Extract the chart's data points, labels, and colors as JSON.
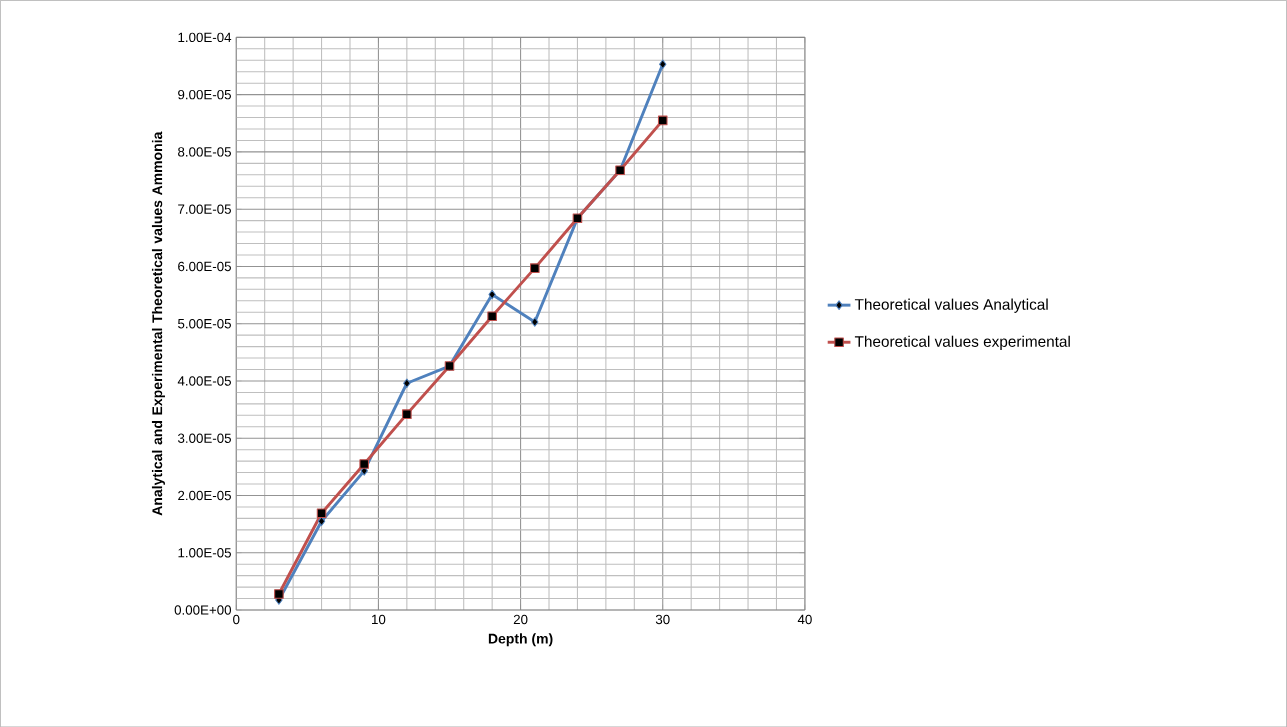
{
  "chart_data": {
    "type": "line",
    "xlabel": "Depth (m)",
    "ylabel": "Analytical and Experimental Theoretical values Ammonia",
    "x": [
      3,
      6,
      9,
      12,
      15,
      18,
      21,
      24,
      27,
      30
    ],
    "series": [
      {
        "name": "Theoretical values    Analytical",
        "color": "#4f81bd",
        "marker": "diamond",
        "values": [
          1.75e-06,
          1.55e-05,
          2.43e-05,
          3.96e-05,
          4.26e-05,
          5.51e-05,
          5.03e-05,
          6.84e-05,
          7.68e-05,
          9.53e-05
        ]
      },
      {
        "name": "Theoretical values experimental",
        "color": "#c0504d",
        "marker": "square",
        "values": [
          2.8e-06,
          1.69e-05,
          2.55e-05,
          3.42e-05,
          4.26e-05,
          5.13e-05,
          5.97e-05,
          6.84e-05,
          7.68e-05,
          8.55e-05
        ]
      }
    ],
    "xlim": [
      0,
      40
    ],
    "xticks": [
      0,
      10,
      20,
      30,
      40
    ],
    "ylim": [
      0,
      0.0001
    ],
    "yticks": [
      {
        "value": 0,
        "label": "0.00E+00"
      },
      {
        "value": 1e-05,
        "label": "1.00E-05"
      },
      {
        "value": 2e-05,
        "label": "2.00E-05"
      },
      {
        "value": 3e-05,
        "label": "3.00E-05"
      },
      {
        "value": 4e-05,
        "label": "4.00E-05"
      },
      {
        "value": 5e-05,
        "label": "5.00E-05"
      },
      {
        "value": 6e-05,
        "label": "6.00E-05"
      },
      {
        "value": 7e-05,
        "label": "7.00E-05"
      },
      {
        "value": 8e-05,
        "label": "8.00E-05"
      },
      {
        "value": 9e-05,
        "label": "9.00E-05"
      },
      {
        "value": 0.0001,
        "label": "1.00E-04"
      }
    ],
    "grid": true,
    "legend": "right",
    "line_style": "solid"
  }
}
